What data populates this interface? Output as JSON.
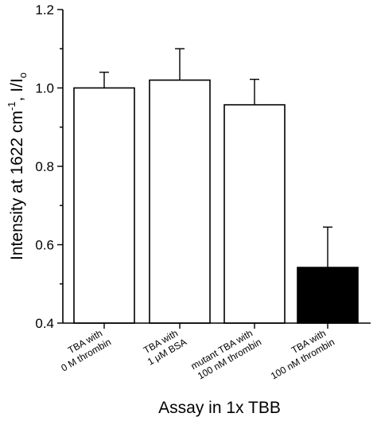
{
  "chart_data": {
    "type": "bar",
    "categories": [
      [
        "TBA with",
        "0 M thrombin"
      ],
      [
        "TBA with",
        "1 μM BSA"
      ],
      [
        "mutant TBA with",
        "100 nM thrombin"
      ],
      [
        "TBA with",
        "100 nM thrombin"
      ]
    ],
    "values": [
      1.0,
      1.02,
      0.957,
      0.542
    ],
    "errors": [
      0.04,
      0.08,
      0.065,
      0.103
    ],
    "bar_fill": [
      "#ffffff",
      "#ffffff",
      "#ffffff",
      "#000000"
    ],
    "ylim": [
      0.4,
      1.2
    ],
    "yticks": [
      0.4,
      0.6,
      0.8,
      1.0,
      1.2
    ],
    "ytick_labels": [
      "0.4",
      "0.6",
      "0.8",
      "1.0",
      "1.2"
    ],
    "ylabel": {
      "main": "Intensity at 1622 cm",
      "sup": "-1",
      "mid": ", I/I",
      "sub": "o"
    },
    "xlabel": "Assay in 1x TBB",
    "grid": false,
    "legend": "none"
  }
}
